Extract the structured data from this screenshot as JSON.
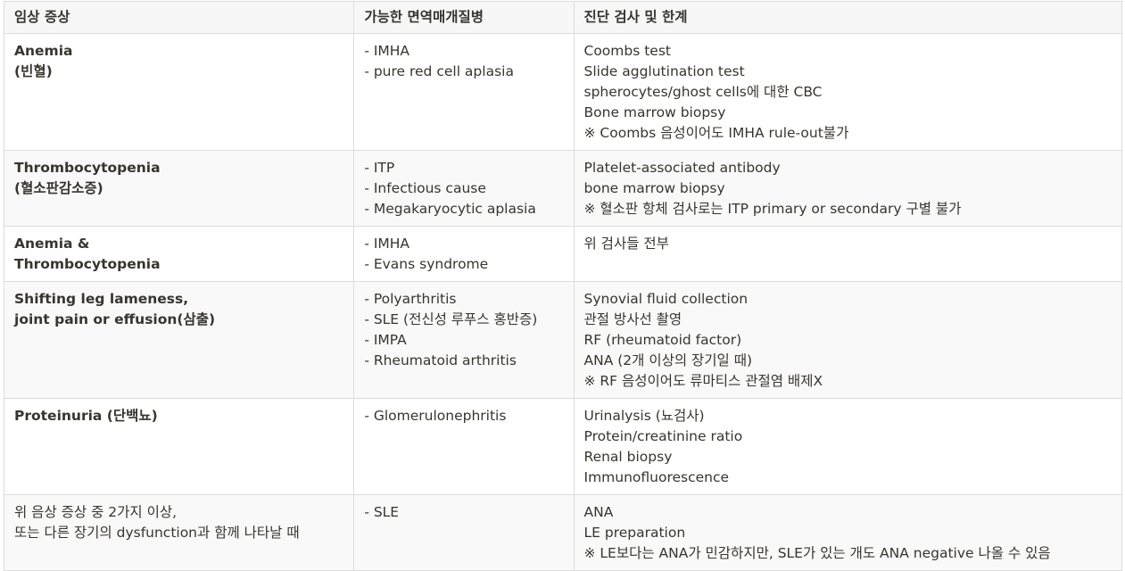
{
  "headers": [
    "임상 증상",
    "가능한 면역매개질병",
    "진단 검사 및 한계"
  ],
  "rows": [
    {
      "symptom": [
        "Anemia",
        "(빈혈)"
      ],
      "symptom_bold": true,
      "diseases": [
        "- IMHA",
        "- pure red cell aplasia"
      ],
      "tests": [
        "Coombs test",
        "Slide agglutination test",
        "spherocytes/ghost cells에 대한 CBC",
        "Bone marrow biopsy",
        "※ Coombs 음성이어도 IMHA rule-out불가"
      ]
    },
    {
      "symptom": [
        "Thrombocytopenia",
        "(혈소판감소증)"
      ],
      "symptom_bold": true,
      "diseases": [
        "- ITP",
        "- Infectious cause",
        "- Megakaryocytic aplasia"
      ],
      "tests": [
        "Platelet-associated antibody",
        "bone marrow biopsy",
        "※ 혈소판 항체 검사로는 ITP primary or secondary 구별 불가"
      ]
    },
    {
      "symptom": [
        "Anemia &",
        "Thrombocytopenia"
      ],
      "symptom_bold": true,
      "diseases": [
        "- IMHA",
        "- Evans syndrome"
      ],
      "tests": [
        "위 검사들 전부"
      ]
    },
    {
      "symptom": [
        "Shifting leg lameness,",
        "joint pain or effusion(삼출)"
      ],
      "symptom_bold": true,
      "diseases": [
        "- Polyarthritis",
        "- SLE (전신성 루푸스 홍반증)",
        "- IMPA",
        "- Rheumatoid arthritis"
      ],
      "tests": [
        "Synovial fluid collection",
        "관절 방사선 촬영",
        "RF (rheumatoid factor)",
        "ANA (2개 이상의 장기일 때)",
        "※ RF 음성이어도 류마티스 관절염 배제X"
      ]
    },
    {
      "symptom": [
        "Proteinuria (단백뇨)"
      ],
      "symptom_bold": true,
      "diseases": [
        "- Glomerulonephritis"
      ],
      "tests": [
        "Urinalysis (뇨검사)",
        "Protein/creatinine ratio",
        "Renal biopsy",
        "Immunofluorescence"
      ]
    },
    {
      "symptom": [
        "위 음상 증상 중 2가지 이상,",
        "또는 다른 장기의 dysfunction과 함께 나타날 때"
      ],
      "symptom_bold": false,
      "diseases": [
        "- SLE"
      ],
      "tests": [
        "ANA",
        "LE preparation",
        "※ LE보다는 ANA가 민감하지만, SLE가 있는 개도 ANA negative 나올 수 있음"
      ]
    }
  ]
}
